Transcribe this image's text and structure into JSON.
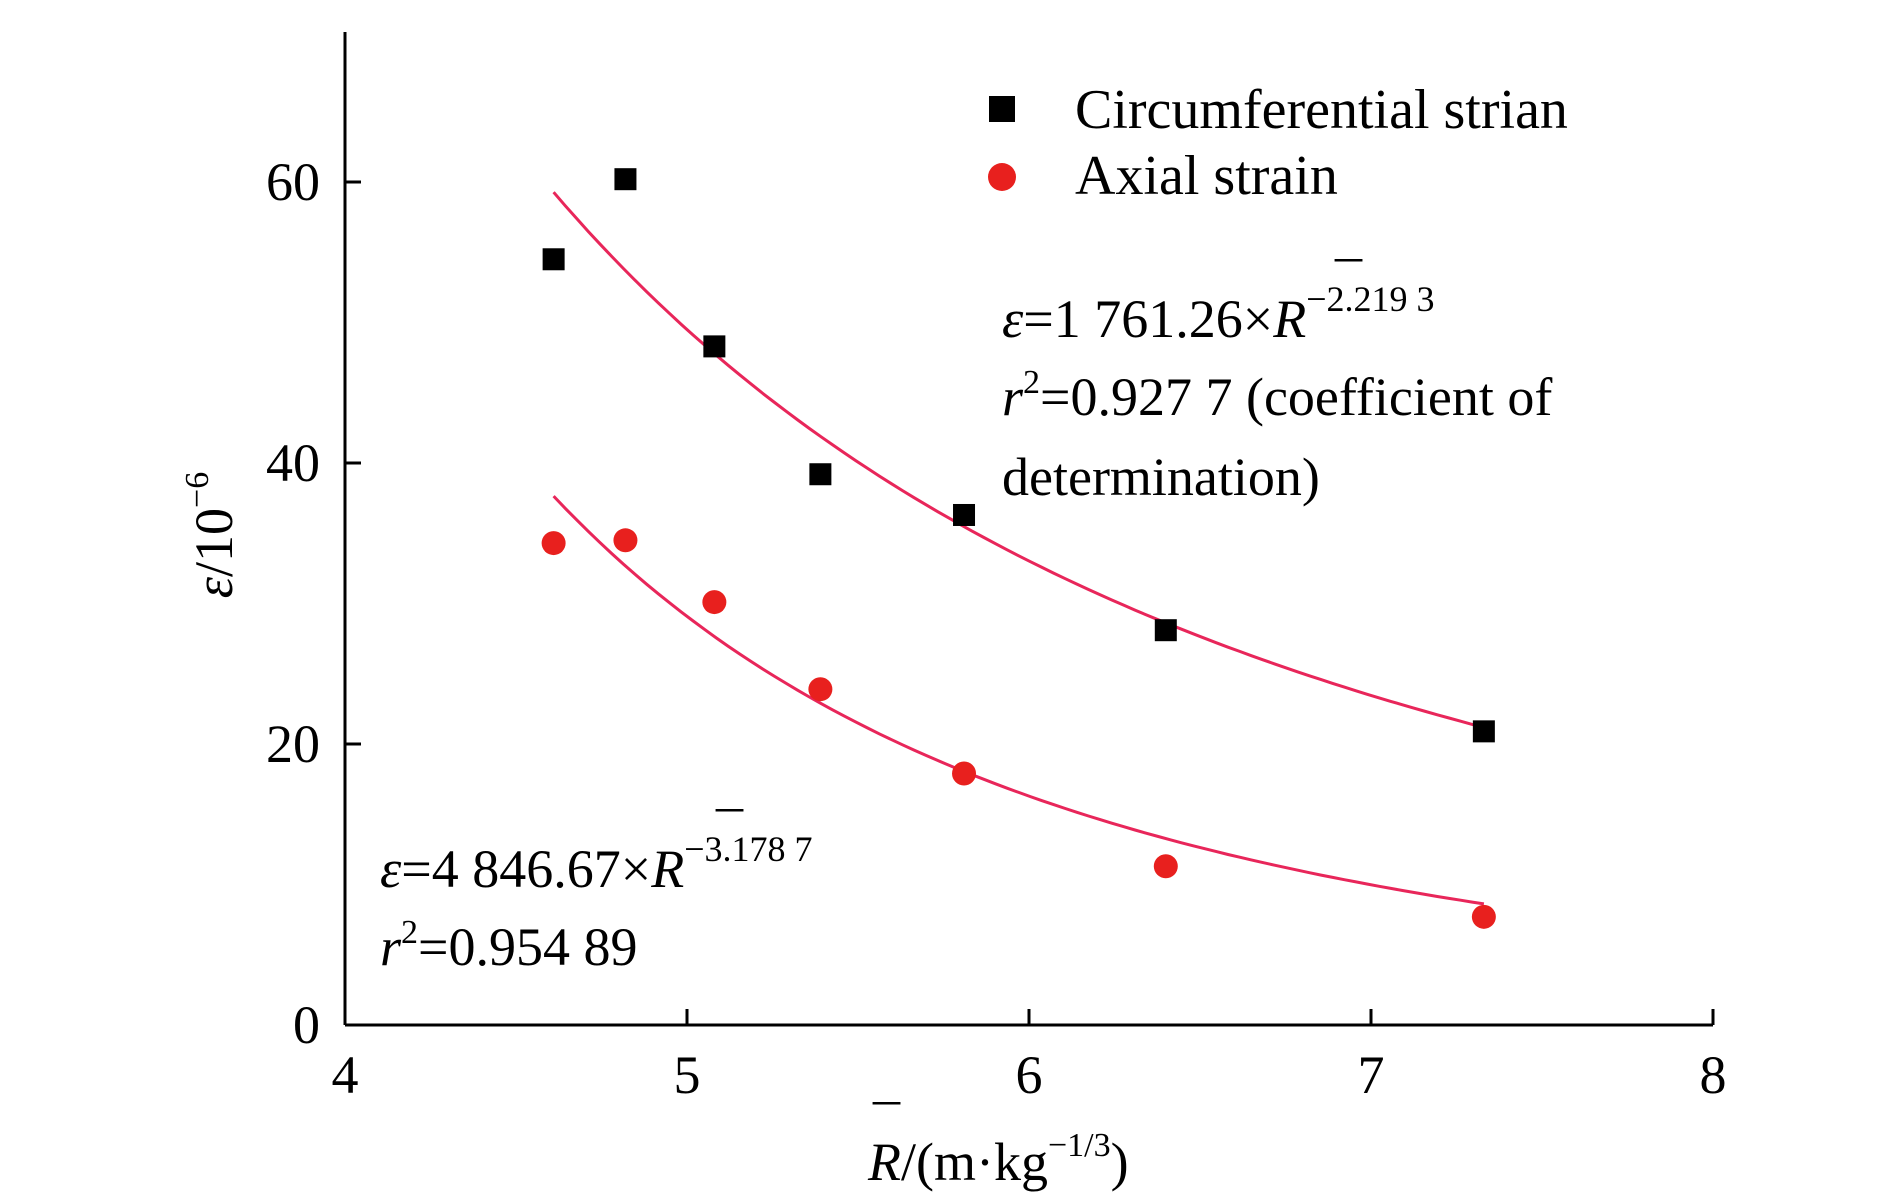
{
  "chart_data": {
    "type": "scatter",
    "x_axis": {
      "range": [
        4,
        8
      ],
      "ticks": [
        4,
        5,
        6,
        7,
        8
      ],
      "tick_labels": [
        "4",
        "5",
        "6",
        "7",
        "8"
      ],
      "label": {
        "symbol": "R",
        "overbar": "¯",
        "unit_open": "/(m·kg",
        "unit_exp": "−1/3",
        "unit_close": ")"
      }
    },
    "y_axis": {
      "range": [
        0,
        70
      ],
      "ticks": [
        0,
        20,
        40,
        60
      ],
      "tick_labels": [
        "0",
        "20",
        "40",
        "60"
      ],
      "label": {
        "symbol": "ε",
        "unit": "/10",
        "exp": "−6"
      }
    },
    "series": [
      {
        "name": "Circumferential strian",
        "marker": "square",
        "color": "#000000",
        "points": [
          {
            "x": 4.61,
            "y": 54.5
          },
          {
            "x": 4.82,
            "y": 60.2
          },
          {
            "x": 5.08,
            "y": 48.3
          },
          {
            "x": 5.39,
            "y": 39.2
          },
          {
            "x": 5.81,
            "y": 36.3
          },
          {
            "x": 6.4,
            "y": 28.1
          },
          {
            "x": 7.33,
            "y": 20.9
          }
        ],
        "fit": {
          "a": 1761.26,
          "b": -2.2193,
          "x_range": [
            4.61,
            7.33
          ],
          "color": "#e8265a"
        }
      },
      {
        "name": "Axial strain",
        "marker": "circle",
        "color": "#e8201e",
        "points": [
          {
            "x": 4.61,
            "y": 34.3
          },
          {
            "x": 4.82,
            "y": 34.5
          },
          {
            "x": 5.08,
            "y": 30.1
          },
          {
            "x": 5.39,
            "y": 23.9
          },
          {
            "x": 5.81,
            "y": 17.9
          },
          {
            "x": 6.4,
            "y": 11.3
          },
          {
            "x": 7.33,
            "y": 7.7
          }
        ],
        "fit": {
          "a": 4846.67,
          "b": -3.1787,
          "x_range": [
            4.61,
            7.33
          ],
          "color": "#e8265a"
        }
      }
    ],
    "annotations": {
      "circumferential": {
        "eq_lhs": "ε",
        "eq_mid": "=1 761.26×",
        "eq_sym": "R",
        "eq_exp": "−2.219 3",
        "r2_sym": "r",
        "r2_sup": "2",
        "r2_val": "=0.927 7 (coefficient of",
        "r2_cont": "determination)"
      },
      "axial": {
        "eq_lhs": "ε",
        "eq_mid": "=4 846.67×",
        "eq_sym": "R",
        "eq_exp": "−3.178 7",
        "r2_sym": "r",
        "r2_sup": "2",
        "r2_val": "=0.954 89"
      }
    },
    "legend": {
      "position": "top-right"
    },
    "grid": false
  }
}
